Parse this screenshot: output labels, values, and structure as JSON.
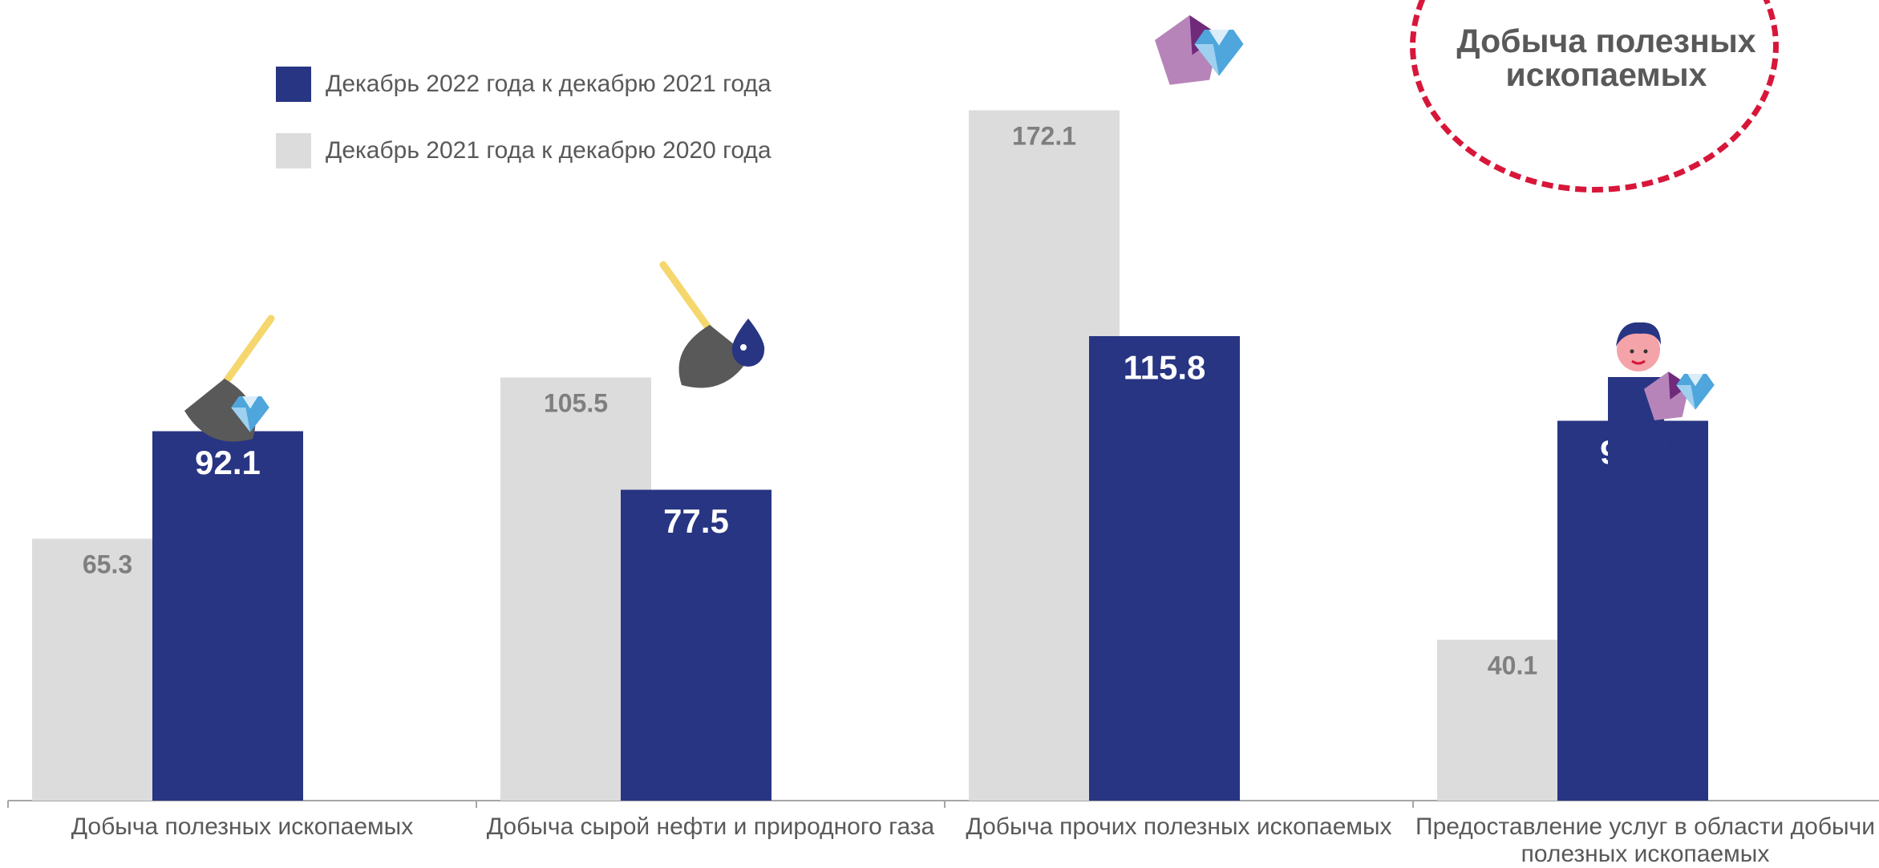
{
  "legend": {
    "item1": "Декабрь 2022 года к декабрю 2021 года",
    "item2": "Декабрь 2021 года к декабрю 2020 года"
  },
  "badge": {
    "line1": "Добыча полезных",
    "line2": "ископаемых"
  },
  "categories": [
    "Добыча полезных ископаемых",
    "Добыча сырой нефти и природного газа",
    "Добыча прочих полезных ископаемых",
    "Предоставление услуг в области добычи полезных ископаемых"
  ],
  "colors": {
    "series_2021": "#dcdcdc",
    "series_2022": "#283583",
    "label_2021": "#7f7f7f",
    "label_2022": "#ffffff",
    "badge_border": "#d8163a"
  },
  "chart_data": {
    "type": "bar",
    "categories": [
      "Добыча полезных ископаемых",
      "Добыча сырой нефти и природного газа",
      "Добыча прочих полезных ископаемых",
      "Предоставление услуг в области добычи полезных ископаемых"
    ],
    "series": [
      {
        "name": "Декабрь 2021 года к декабрю 2020 года",
        "values": [
          65.3,
          105.5,
          172.1,
          40.1
        ]
      },
      {
        "name": "Декабрь 2022 года к декабрю 2021 года",
        "values": [
          92.1,
          77.5,
          115.8,
          94.7
        ]
      }
    ],
    "legend_position": "top-left",
    "grid": false
  },
  "icons": [
    "shovel-diamond-icon",
    "shovel-oil-drop-icon",
    "gems-icon",
    "worker-gems-icon"
  ]
}
